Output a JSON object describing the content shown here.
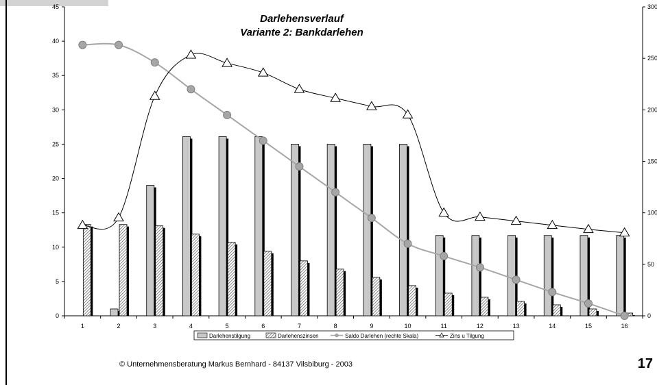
{
  "chart_data": {
    "type": "bar",
    "title": "Darlehensverlauf",
    "subtitle": "Variante 2: Bankdarlehen",
    "categories": [
      "1",
      "2",
      "3",
      "4",
      "5",
      "6",
      "7",
      "8",
      "9",
      "10",
      "11",
      "12",
      "13",
      "14",
      "15",
      "16"
    ],
    "y_left": {
      "min": 0,
      "max": 45,
      "ticks": [
        "0",
        "5",
        "10",
        "15",
        "20",
        "25",
        "30",
        "35",
        "40",
        "45"
      ]
    },
    "y_right": {
      "min": 0,
      "max": 300,
      "ticks": [
        "0",
        "50",
        "100",
        "150",
        "200",
        "250",
        "300"
      ]
    },
    "series": [
      {
        "name": "Darlehenstilgung",
        "type": "bar",
        "axis": "left",
        "values": [
          0,
          1.0,
          19.0,
          26.1,
          26.1,
          26.1,
          25.0,
          25.0,
          25.0,
          25.0,
          11.7,
          11.7,
          11.7,
          11.7,
          11.7,
          11.7
        ]
      },
      {
        "name": "Darlehenszinsen",
        "type": "bar",
        "axis": "left",
        "values": [
          13.3,
          13.3,
          13.1,
          11.9,
          10.7,
          9.4,
          8.0,
          6.8,
          5.6,
          4.4,
          3.3,
          2.7,
          2.1,
          1.6,
          1.0,
          0.4
        ]
      },
      {
        "name": "Saldo Darlehen (rechte Skala)",
        "type": "line",
        "axis": "right",
        "values": [
          263,
          263,
          246,
          220,
          195,
          170,
          145,
          120,
          95,
          70,
          58,
          47,
          35,
          23,
          12,
          0
        ]
      },
      {
        "name": "Zins u Tilgung",
        "type": "line",
        "axis": "left",
        "values": [
          13.2,
          14.3,
          32.0,
          38.0,
          36.8,
          35.4,
          33.0,
          31.7,
          30.5,
          29.3,
          15.0,
          14.4,
          13.8,
          13.2,
          12.6,
          12.1
        ]
      }
    ],
    "legend_position": "bottom",
    "grid": false
  },
  "colors": {
    "bar_fill": "#c8c8c8",
    "bar_shadow": "#000000",
    "hatch": "#555555",
    "saldo_line": "#a6a6a6",
    "saldo_marker": "#a6a6a6",
    "zins_line": "#000000",
    "zins_marker_fill": "#ffffff"
  },
  "footer": {
    "copyright": "© Unternehmensberatung Markus Bernhard  - 84137 Vilsbiburg - 2003",
    "page_number": "17"
  }
}
